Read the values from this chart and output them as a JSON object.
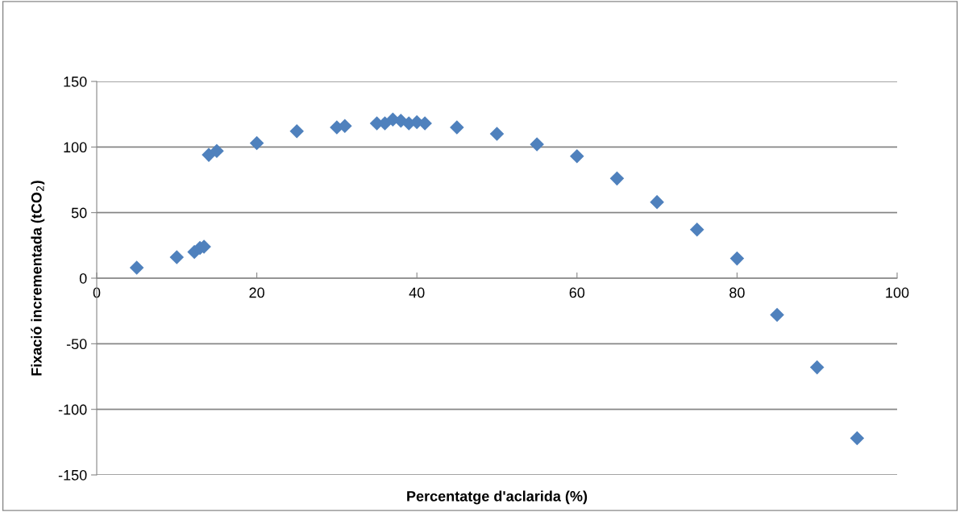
{
  "chart_data": {
    "type": "scatter",
    "xlabel": "Percentatge d'aclarida (%)",
    "ylabel": "Fixació incrementada (tCO$_{2}$)",
    "x": [
      5,
      10,
      12.2,
      12.9,
      13.4,
      14,
      15,
      20,
      25,
      30,
      31,
      35,
      36,
      37,
      38,
      39,
      40,
      41,
      45,
      50,
      55,
      60,
      65,
      70,
      75,
      80,
      85,
      90,
      95
    ],
    "series": [
      {
        "color": "#4f81bd",
        "values": [
          8,
          16,
          20,
          23,
          24,
          94,
          97,
          103,
          112,
          115,
          116,
          118,
          118,
          121,
          120,
          118,
          119,
          118,
          115,
          110,
          102,
          93,
          76,
          58,
          37,
          15,
          -28,
          -68,
          -122
        ]
      }
    ],
    "xlim": [
      0,
      100
    ],
    "xticks": [
      0,
      20,
      40,
      60,
      80,
      100
    ],
    "ylim": [
      -150,
      150
    ],
    "yticks": [
      -150,
      -100,
      -50,
      0,
      50,
      100,
      150
    ],
    "grid": "y",
    "marker": "diamond",
    "legend": false
  }
}
